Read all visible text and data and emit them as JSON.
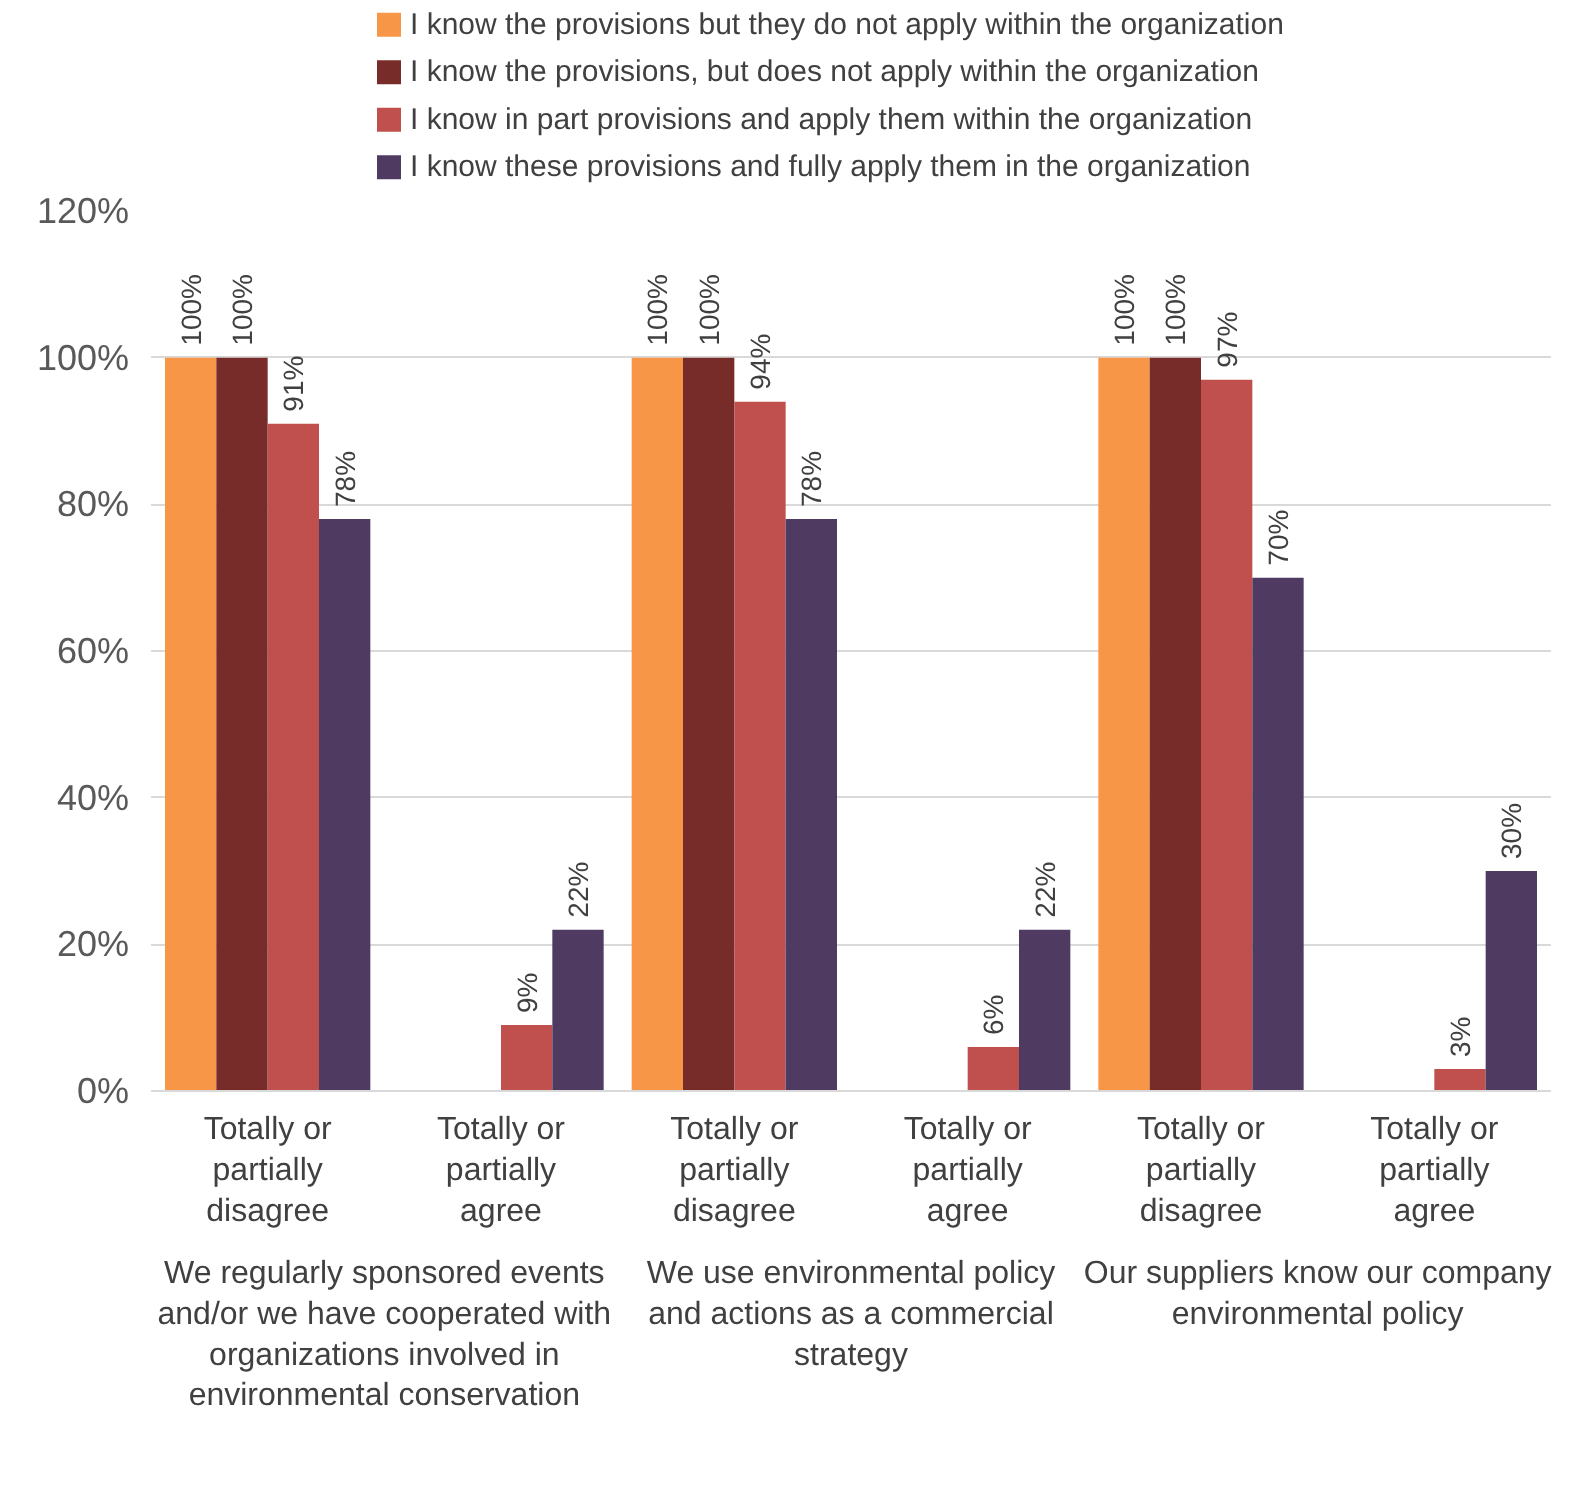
{
  "chart_data": {
    "type": "bar",
    "categories": [
      "Totally or partially disagree",
      "Totally or partially agree",
      "Totally or partially disagree",
      "Totally or partially agree",
      "Totally or partially disagree",
      "Totally or partially agree"
    ],
    "annotations": [
      "We regularly sponsored events and/or we have cooperated with organizations involved in environmental conservation",
      "We use environmental policy and actions as a commercial strategy",
      "Our suppliers know our company environmental policy"
    ],
    "series": [
      {
        "name": "I know the provisions but they do not apply within the organization",
        "color": "#f79646",
        "values": [
          100,
          null,
          100,
          null,
          100,
          null
        ],
        "value_labels": [
          "100%",
          null,
          "100%",
          null,
          "100%",
          null
        ]
      },
      {
        "name": "I know the provisions, but does not apply within the organization",
        "color": "#772c2a",
        "values": [
          100,
          null,
          100,
          null,
          100,
          null
        ],
        "value_labels": [
          "100%",
          null,
          "100%",
          null,
          "100%",
          null
        ]
      },
      {
        "name": "I know in part provisions and apply them within the organization",
        "color": "#c0504d",
        "values": [
          91,
          9,
          94,
          6,
          97,
          3
        ],
        "value_labels": [
          "91%",
          "9%",
          "94%",
          "6%",
          "97%",
          "3%"
        ]
      },
      {
        "name": "I know these provisions and fully apply them in the organization",
        "color": "#4f3b62",
        "values": [
          78,
          22,
          78,
          22,
          70,
          30
        ],
        "value_labels": [
          "78%",
          "22%",
          "78%",
          "22%",
          "70%",
          "30%"
        ]
      }
    ],
    "ylim": [
      0,
      120
    ],
    "yticks": [
      {
        "value": 0,
        "label": "0%"
      },
      {
        "value": 20,
        "label": "20%"
      },
      {
        "value": 40,
        "label": "40%"
      },
      {
        "value": 60,
        "label": "60%"
      },
      {
        "value": 80,
        "label": "80%"
      },
      {
        "value": 100,
        "label": "100%"
      },
      {
        "value": 120,
        "label": "120%"
      }
    ],
    "grid": "y",
    "legend": "top"
  }
}
